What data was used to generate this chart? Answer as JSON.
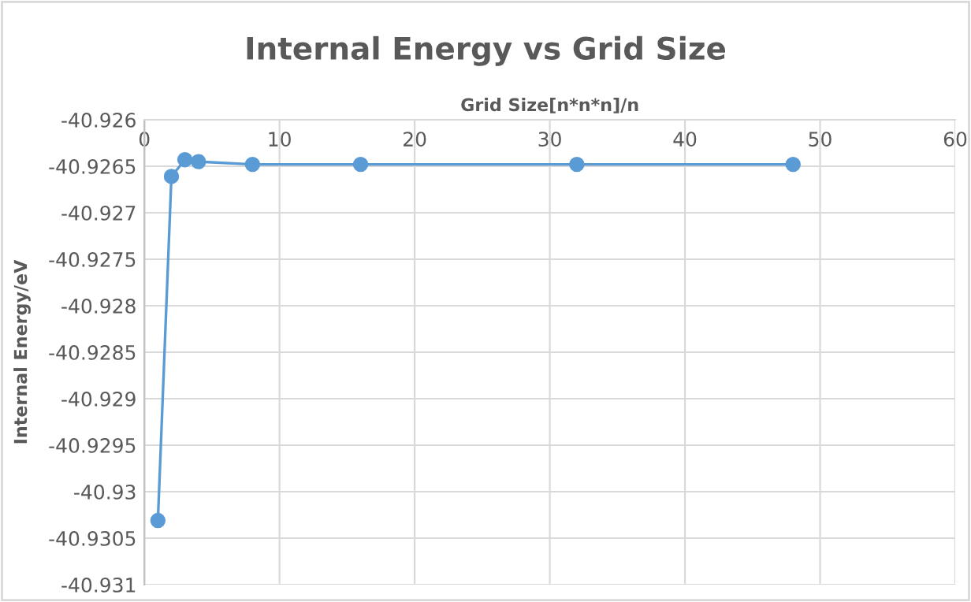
{
  "chart_data": {
    "type": "line",
    "title": "Internal Energy vs Grid Size",
    "xlabel": "Grid Size[n*n*n]/n",
    "ylabel": "Internal Energy/eV",
    "x": [
      1,
      2,
      3,
      4,
      8,
      16,
      32,
      48
    ],
    "series": [
      {
        "color": "#5b9bd5",
        "values": [
          -40.93031,
          -40.92661,
          -40.92643,
          -40.92645,
          -40.92648,
          -40.92648,
          -40.92648,
          -40.92648
        ]
      }
    ],
    "xlim": [
      0,
      60
    ],
    "xticks": [
      0,
      10,
      20,
      30,
      40,
      50,
      60
    ],
    "ylim": [
      -40.931,
      -40.926
    ],
    "yticks": [
      -40.931,
      -40.9305,
      -40.93,
      -40.9295,
      -40.929,
      -40.9285,
      -40.928,
      -40.9275,
      -40.927,
      -40.9265,
      -40.926
    ],
    "grid": true,
    "marker": "circle",
    "line_style": "solid",
    "legend": false
  }
}
